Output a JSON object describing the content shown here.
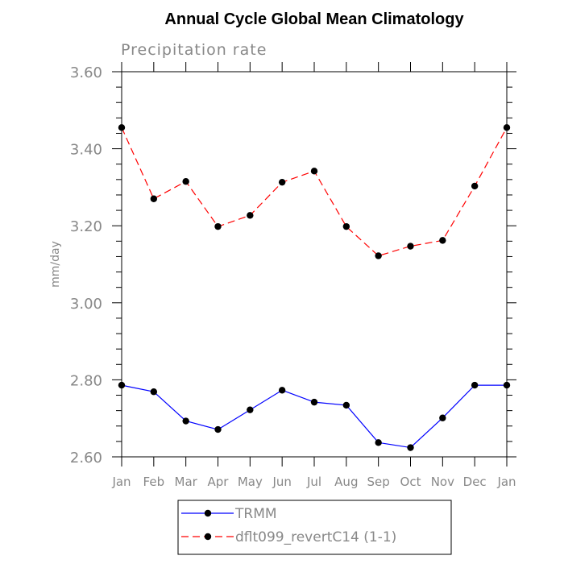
{
  "chart_data": {
    "type": "line",
    "title": "Annual Cycle Global Mean Climatology",
    "subtitle": "Precipitation rate",
    "xlabel": "",
    "ylabel": "mm/day",
    "ylim": [
      2.6,
      3.6
    ],
    "yticks": [
      "2.60",
      "2.80",
      "3.00",
      "3.20",
      "3.40",
      "3.60"
    ],
    "categories": [
      "Jan",
      "Feb",
      "Mar",
      "Apr",
      "May",
      "Jun",
      "Jul",
      "Aug",
      "Sep",
      "Oct",
      "Nov",
      "Dec",
      "Jan"
    ],
    "series": [
      {
        "name": "TRMM",
        "color": "#0000ff",
        "dash": "solid",
        "values": [
          2.786,
          2.769,
          2.693,
          2.671,
          2.722,
          2.773,
          2.742,
          2.734,
          2.637,
          2.624,
          2.701,
          2.786,
          2.786
        ]
      },
      {
        "name": "dflt099_revertC14 (1-1)",
        "color": "#ff0000",
        "dash": "dashed",
        "values": [
          3.455,
          3.27,
          3.315,
          3.198,
          3.227,
          3.313,
          3.342,
          3.198,
          3.122,
          3.147,
          3.162,
          3.303,
          3.455
        ]
      }
    ],
    "legend": "bottom-center"
  }
}
